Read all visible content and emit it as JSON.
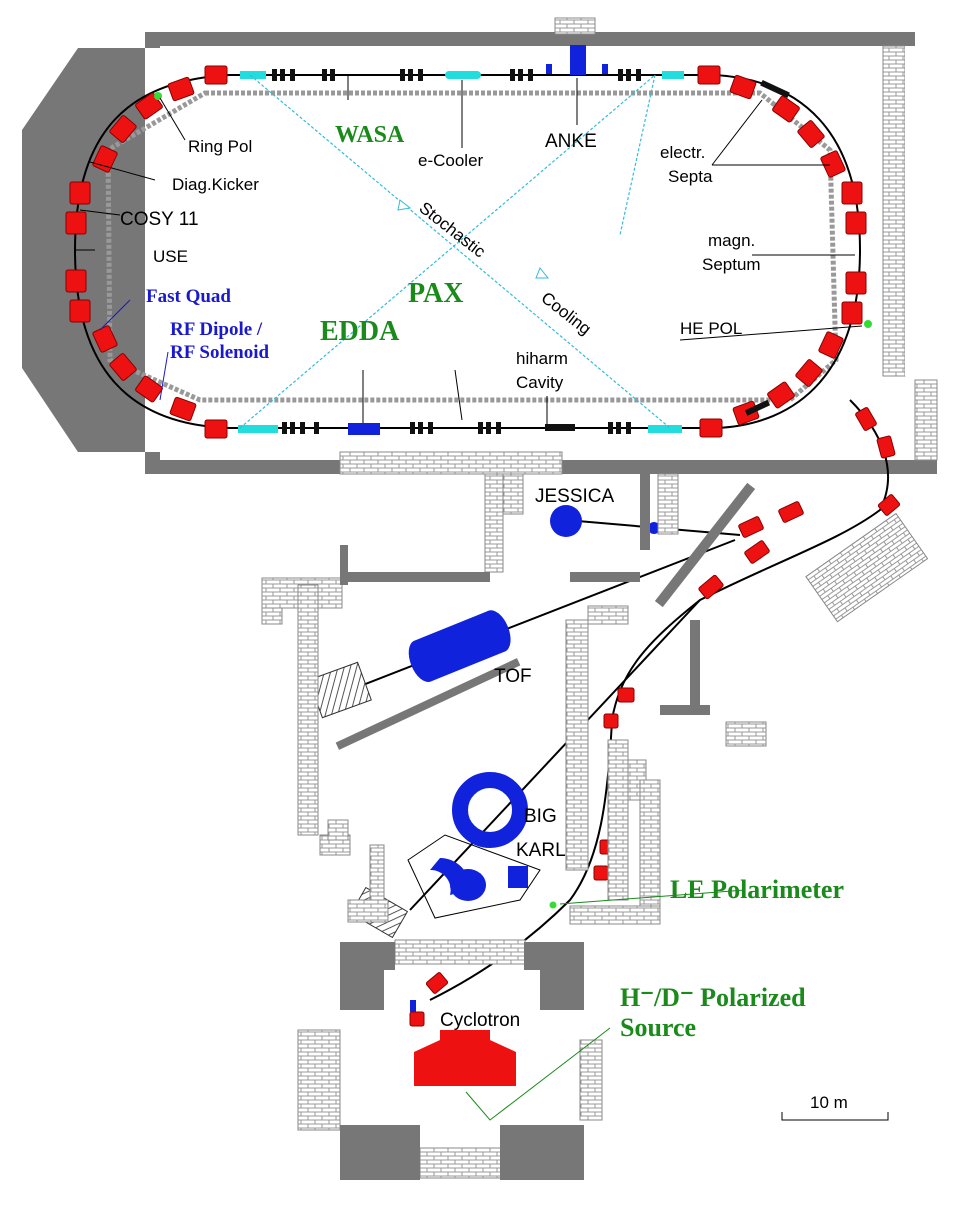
{
  "colors": {
    "wall": "#777777",
    "brick": "#ffffff",
    "dipole": "#ee1111",
    "detector": "#1122dd",
    "cooler": "#22dddd",
    "green_label": "#1a8a1a",
    "blue_label": "#1a1acc",
    "cooling_line": "#33bbdd"
  },
  "labels": {
    "wasa": "WASA",
    "ring_pol": "Ring  Pol",
    "e_cooler": "e-Cooler",
    "anke": "ANKE",
    "electr_septa_1": "electr.",
    "electr_septa_2": "Septa",
    "diag_kicker": "Diag.Kicker",
    "cosy11": "COSY 11",
    "use": "USE",
    "stochastic": "Stochastic",
    "cooling": "Cooling",
    "magn_septum_1": "magn.",
    "magn_septum_2": "Septum",
    "fast_quad": "Fast Quad",
    "pax": "PAX",
    "edda": "EDDA",
    "rf_dipole": "RF Dipole /",
    "rf_solenoid": "RF Solenoid",
    "he_pol": "HE  POL",
    "hiharm_1": "hiharm",
    "hiharm_2": "Cavity",
    "jessica": "JESSICA",
    "tof": "TOF",
    "big": "BIG",
    "karl": "KARL",
    "le_polarimeter": "LE Polarimeter",
    "h_d_source_1": "H⁻/D⁻  Polarized",
    "h_d_source_2": "Source",
    "cyclotron": "Cyclotron",
    "scale": "10 m"
  }
}
